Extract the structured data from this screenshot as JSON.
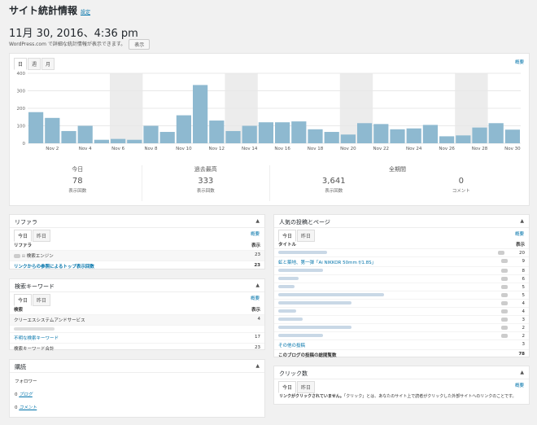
{
  "page": {
    "title": "サイト統計情報",
    "settings_link": "設定",
    "date": "11月 30, 2016、4:36 pm",
    "notice": "WordPress.com で詳細な統計情報が表示できます。",
    "show_button": "表示"
  },
  "stats_panel": {
    "tabs": [
      "日",
      "週",
      "月"
    ],
    "summary_link": "概要",
    "summary": [
      {
        "heading": "今日",
        "value": "78",
        "label": "表示回数"
      },
      {
        "heading": "過去最高",
        "value": "333",
        "label": "表示回数"
      },
      {
        "heading": "全期間",
        "value": "3,641",
        "label": "表示回数"
      },
      {
        "heading": "",
        "value": "0",
        "label": "コメント"
      }
    ]
  },
  "chart_data": {
    "type": "bar",
    "categories": [
      "Nov 1",
      "Nov 2",
      "Nov 3",
      "Nov 4",
      "Nov 5",
      "Nov 6",
      "Nov 7",
      "Nov 8",
      "Nov 9",
      "Nov 10",
      "Nov 11",
      "Nov 12",
      "Nov 13",
      "Nov 14",
      "Nov 15",
      "Nov 16",
      "Nov 17",
      "Nov 18",
      "Nov 19",
      "Nov 20",
      "Nov 21",
      "Nov 22",
      "Nov 23",
      "Nov 24",
      "Nov 25",
      "Nov 26",
      "Nov 27",
      "Nov 28",
      "Nov 29",
      "Nov 30"
    ],
    "tick_labels": [
      "Nov 2",
      "Nov 4",
      "Nov 6",
      "Nov 8",
      "Nov 10",
      "Nov 12",
      "Nov 14",
      "Nov 16",
      "Nov 18",
      "Nov 20",
      "Nov 22",
      "Nov 24",
      "Nov 26",
      "Nov 28",
      "Nov 30"
    ],
    "values": [
      178,
      145,
      70,
      100,
      20,
      25,
      20,
      100,
      65,
      160,
      333,
      130,
      70,
      100,
      120,
      120,
      125,
      80,
      65,
      50,
      115,
      110,
      80,
      85,
      105,
      40,
      45,
      90,
      115,
      78
    ],
    "weekend_bands": [
      [
        5,
        6
      ],
      [
        12,
        13
      ],
      [
        19,
        20
      ],
      [
        26,
        27
      ]
    ],
    "ylim": [
      0,
      400
    ],
    "yticks": [
      "0",
      "100",
      "200",
      "300",
      "400"
    ],
    "colors": {
      "bar": "#8eb9d0",
      "band": "#ececec",
      "grid": "#e8e8e8"
    }
  },
  "referrers": {
    "title": "リファラ",
    "tabs": [
      "今日",
      "昨日"
    ],
    "summary_link": "概要",
    "col_name": "リファラ",
    "col_views": "表示",
    "rows": [
      {
        "name": "検索エンジン",
        "views": "23",
        "link": false,
        "has_icon": true
      },
      {
        "name": "リンクからの参照によるトップ表示回数",
        "views": "23",
        "link": true,
        "has_icon": false
      }
    ]
  },
  "search_terms": {
    "title": "検索キーワード",
    "tabs": [
      "今日",
      "昨日"
    ],
    "summary_link": "概要",
    "col_name": "検索",
    "col_views": "表示",
    "rows": [
      {
        "name": "クリーエスシステムアンドサービス",
        "views": "4",
        "link": false
      },
      {
        "name": "",
        "views": "",
        "link": false,
        "blur": true
      },
      {
        "name": "不明な検索キーワード",
        "views": "17",
        "link": true
      },
      {
        "name": "検索キーワード合計",
        "views": "23",
        "link": false
      }
    ]
  },
  "subscriptions": {
    "title": "購読",
    "label": "フォロワー",
    "items": [
      {
        "count": "0",
        "name": "ブログ"
      },
      {
        "count": "0",
        "name": "コメント"
      }
    ]
  },
  "popular": {
    "title": "人気の投稿とページ",
    "tabs": [
      "今日",
      "昨日"
    ],
    "summary_link": "概要",
    "col_name": "タイトル",
    "col_views": "表示",
    "rows": [
      {
        "name": "",
        "views": "20",
        "blur_w": 60
      },
      {
        "name": "虹と築地、第一弾「Ai NIKKOR 50mm f/1.8S」",
        "views": "9",
        "blur_w": 0
      },
      {
        "name": "",
        "views": "8",
        "blur_w": 55
      },
      {
        "name": "",
        "views": "6",
        "blur_w": 25
      },
      {
        "name": "",
        "views": "5",
        "blur_w": 20
      },
      {
        "name": "",
        "views": "5",
        "blur_w": 130
      },
      {
        "name": "",
        "views": "4",
        "blur_w": 90
      },
      {
        "name": "",
        "views": "4",
        "blur_w": 22
      },
      {
        "name": "",
        "views": "3",
        "blur_w": 30
      },
      {
        "name": "",
        "views": "2",
        "blur_w": 90
      },
      {
        "name": "",
        "views": "2",
        "blur_w": 55
      }
    ],
    "other_label": "その他の投稿",
    "other_views": "3",
    "total_label": "このブログの投稿の総閲覧数",
    "total_views": "78"
  },
  "clicks": {
    "title": "クリック数",
    "tabs": [
      "今日",
      "昨日"
    ],
    "summary_link": "概要",
    "message_bold": "リンクがクリックされていません。",
    "message": "「クリック」とは、あなたのサイト上で読者がクリックした外部サイトへのリンクのことです。"
  }
}
